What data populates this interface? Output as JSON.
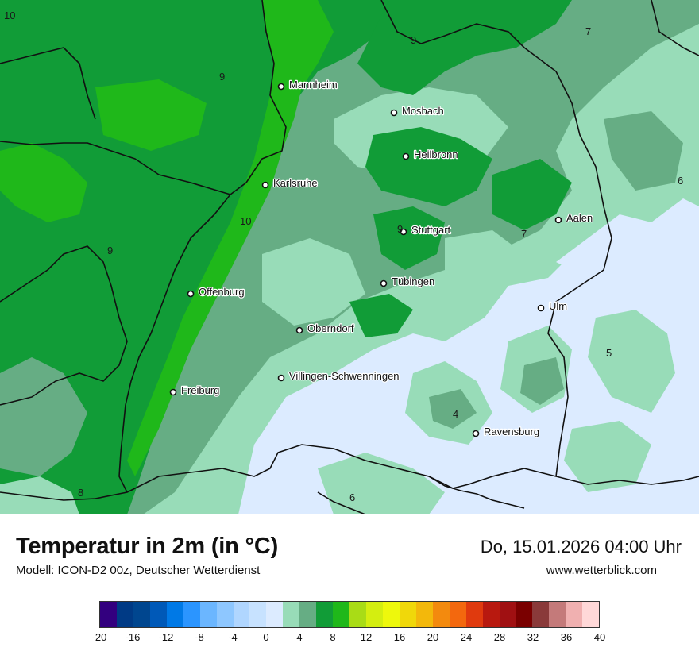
{
  "title": "Temperatur in 2m (in °C)",
  "subtitle": "Modell: ICON-D2 00z, Deutscher Wetterdienst",
  "datetime": "Do, 15.01.2026 04:00 Uhr",
  "website": "www.wetterblick.com",
  "cities": [
    {
      "name": "Mannheim"
    },
    {
      "name": "Mosbach"
    },
    {
      "name": "Heilbronn"
    },
    {
      "name": "Karlsruhe"
    },
    {
      "name": "Stuttgart"
    },
    {
      "name": "Aalen"
    },
    {
      "name": "Tübingen"
    },
    {
      "name": "Offenburg"
    },
    {
      "name": "Ulm"
    },
    {
      "name": "Oberndorf"
    },
    {
      "name": "Villingen-Schwenningen"
    },
    {
      "name": "Freiburg"
    },
    {
      "name": "Ravensburg"
    }
  ],
  "isotherm_labels": [
    "10",
    "9",
    "9",
    "7",
    "6",
    "10",
    "9",
    "9",
    "7",
    "5",
    "4",
    "8",
    "6"
  ],
  "legend": {
    "colors": [
      "#33007f",
      "#003a85",
      "#00468f",
      "#0059b8",
      "#0079e6",
      "#2b95ff",
      "#6bb6ff",
      "#8ec7ff",
      "#b0d6ff",
      "#c7e2ff",
      "#dcebff",
      "#98dcb8",
      "#66ad84",
      "#119c37",
      "#1fb81a",
      "#a9dc16",
      "#d4ee10",
      "#eef80c",
      "#f0d80a",
      "#f3b80b",
      "#f38a0e",
      "#f3680e",
      "#e03a0e",
      "#b8190f",
      "#a01012",
      "#7a0000",
      "#8a3a3a",
      "#c47a7a",
      "#f0b0b0",
      "#ffd8d8"
    ],
    "ticks": [
      "-20",
      "-16",
      "-12",
      "-8",
      "-4",
      "0",
      "4",
      "8",
      "12",
      "16",
      "20",
      "24",
      "28",
      "32",
      "36",
      "40"
    ]
  },
  "palette": {
    "cold_light": "#dcebff",
    "mint": "#98dcb8",
    "grey_green": "#66ad84",
    "green": "#119c37",
    "bright_green": "#1fb81a",
    "border": "#111111"
  }
}
